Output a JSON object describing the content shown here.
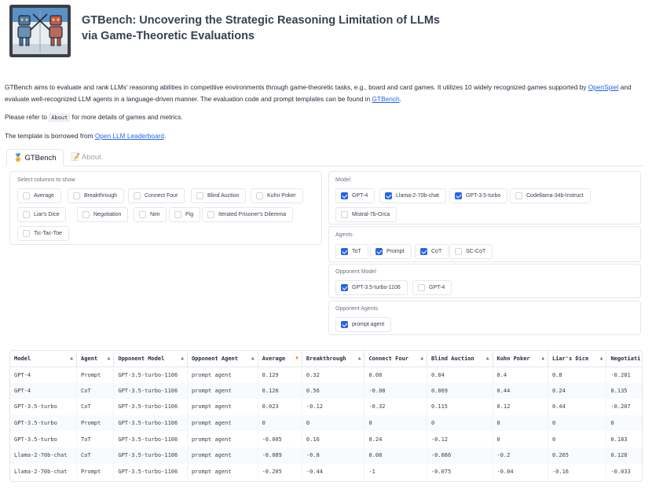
{
  "header": {
    "title": "GTBench: Uncovering the Strategic Reasoning Limitation of LLMs via Game-Theoretic Evaluations",
    "logo": "robot-fencing-logo"
  },
  "intro": {
    "p1_a": "GTBench aims to evaluate and rank LLMs' reasoning abilities in competitive environments through game-theoretic tasks, e.g., board and card games. It utilizes 10 widely recognized games supported by ",
    "p1_link1": "OpenSpiel",
    "p1_b": " and evaluate well-recognized LLM agents in a language-driven manner. The evaluation code and prompt templates can be found in ",
    "p1_link2": "GTBench",
    "p1_c": ".",
    "p2_a": "Please refer to ",
    "p2_code": "About",
    "p2_b": " for more details of games and metrics.",
    "p3_a": "The template is borrowed from ",
    "p3_link": "Open LLM Leaderboard",
    "p3_b": "."
  },
  "tabs": [
    {
      "label": "🏅 GTBench",
      "icon": "medal-icon"
    },
    {
      "label": "📝 About",
      "icon": "memo-icon"
    }
  ],
  "columns_panel": {
    "label": "Select columns to show",
    "options": [
      {
        "label": "Average",
        "checked": false
      },
      {
        "label": "Breakthrough",
        "checked": false
      },
      {
        "label": "Connect Four",
        "checked": false
      },
      {
        "label": "Blind Auction",
        "checked": false
      },
      {
        "label": "Kuhn Poker",
        "checked": false
      },
      {
        "label": "Liar's Dice",
        "checked": false
      },
      {
        "label": "Negotiation",
        "checked": false
      },
      {
        "label": "Nim",
        "checked": false
      },
      {
        "label": "Pig",
        "checked": false
      },
      {
        "label": "Iterated Prisoner's Dilemma",
        "checked": false
      },
      {
        "label": "Tic-Tac-Toe",
        "checked": false
      }
    ]
  },
  "model_panel": {
    "label": "Model",
    "options": [
      {
        "label": "GPT-4",
        "checked": true
      },
      {
        "label": "Llama-2-70b-chat",
        "checked": true
      },
      {
        "label": "GPT-3.5-turbo",
        "checked": true
      },
      {
        "label": "Codellama-34b-Instruct",
        "checked": false
      },
      {
        "label": "Mistral-7b-Orca",
        "checked": false
      }
    ]
  },
  "agents_panel": {
    "label": "Agents",
    "options": [
      {
        "label": "ToT",
        "checked": true
      },
      {
        "label": "Prompt",
        "checked": true
      },
      {
        "label": "CoT",
        "checked": true
      },
      {
        "label": "SC-CoT",
        "checked": false
      }
    ]
  },
  "opponent_model_panel": {
    "label": "Opponent Model",
    "options": [
      {
        "label": "GPT-3.5-turbo-1106",
        "checked": true
      },
      {
        "label": "GPT-4",
        "checked": false
      }
    ]
  },
  "opponent_agents_panel": {
    "label": "Opponent Agents",
    "options": [
      {
        "label": "prompt agent",
        "checked": true
      }
    ]
  },
  "table": {
    "columns": [
      "Model",
      "Agent",
      "Opponent Model",
      "Opponent Agent",
      "Average",
      "Breakthrough",
      "Connect Four",
      "Blind Auction",
      "Kuhn Poker",
      "Liar's Dice",
      "Negotiati"
    ],
    "sorted_column": "Average",
    "rows": [
      [
        "GPT-4",
        "Prompt",
        "GPT-3.5-turbo-1106",
        "prompt agent",
        "0.129",
        "0.32",
        "0.08",
        "0.04",
        "0.4",
        "0.8",
        "-0.281"
      ],
      [
        "GPT-4",
        "CoT",
        "GPT-3.5-turbo-1106",
        "prompt agent",
        "0.126",
        "0.56",
        "-0.08",
        "0.069",
        "0.44",
        "0.24",
        "0.135"
      ],
      [
        "GPT-3.5-turbo",
        "CoT",
        "GPT-3.5-turbo-1106",
        "prompt agent",
        "0.023",
        "-0.12",
        "-0.32",
        "0.115",
        "0.12",
        "0.44",
        "-0.207"
      ],
      [
        "GPT-3.5-turbo",
        "Prompt",
        "GPT-3.5-turbo-1106",
        "prompt agent",
        "0",
        "0",
        "0",
        "0",
        "0",
        "0",
        "0"
      ],
      [
        "GPT-3.5-turbo",
        "ToT",
        "GPT-3.5-turbo-1106",
        "prompt agent",
        "-0.005",
        "0.16",
        "0.24",
        "-0.12",
        "0",
        "0",
        "0.183"
      ],
      [
        "Llama-2-70b-chat",
        "CoT",
        "GPT-3.5-turbo-1106",
        "prompt agent",
        "-0.089",
        "-0.8",
        "0.08",
        "-0.086",
        "-0.2",
        "0.265",
        "0.128"
      ],
      [
        "Llama-2-70b-chat",
        "Prompt",
        "GPT-3.5-turbo-1106",
        "prompt agent",
        "-0.205",
        "-0.44",
        "-1",
        "-0.075",
        "-0.04",
        "-0.16",
        "-0.033"
      ]
    ]
  }
}
